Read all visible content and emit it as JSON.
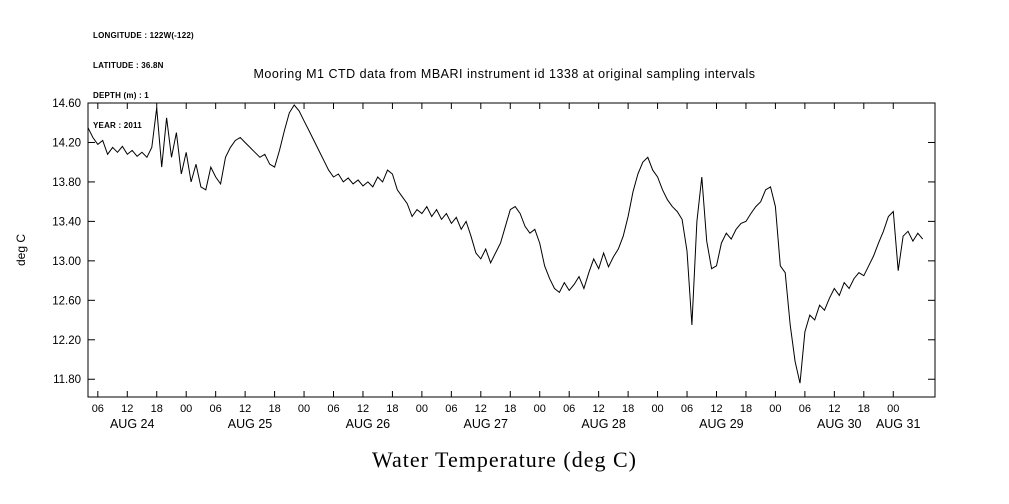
{
  "header": {
    "info_lines": [
      "LONGITUDE : 122W(-122)",
      "LATITUDE : 36.8N",
      "DEPTH (m) : 1",
      "YEAR : 2011"
    ]
  },
  "chart_data": {
    "type": "line",
    "title": "Mooring M1 CTD data from MBARI instrument id 1338 at original sampling intervals",
    "ylabel": "deg C",
    "xlabel": "Water Temperature (deg C)",
    "ylim": [
      11.62,
      14.6
    ],
    "xlim_hours": [
      4,
      176.5
    ],
    "y_ticks": [
      14.6,
      14.2,
      13.8,
      13.4,
      13.0,
      12.6,
      12.2,
      11.8
    ],
    "x_ticks": {
      "start_hour": 6,
      "end_hour": 168,
      "step_hours": 6
    },
    "x_tick_labels_cycle": [
      "06",
      "12",
      "18",
      "00"
    ],
    "day_labels": [
      {
        "label": "AUG 24",
        "hour": 13
      },
      {
        "label": "AUG 25",
        "hour": 37
      },
      {
        "label": "AUG 26",
        "hour": 61
      },
      {
        "label": "AUG 27",
        "hour": 85
      },
      {
        "label": "AUG 28",
        "hour": 109
      },
      {
        "label": "AUG 29",
        "hour": 133
      },
      {
        "label": "AUG 30",
        "hour": 157
      },
      {
        "label": "AUG 31",
        "hour": 169
      }
    ],
    "grid": false,
    "legend": "none",
    "line_color": "#000000",
    "background_color": "#ffffff",
    "series": [
      {
        "name": "water_temperature_degC",
        "start_hour": 4,
        "step_hours": 1,
        "values": [
          14.35,
          14.25,
          14.18,
          14.22,
          14.08,
          14.15,
          14.1,
          14.16,
          14.08,
          14.12,
          14.06,
          14.1,
          14.05,
          14.15,
          14.55,
          13.95,
          14.45,
          14.05,
          14.3,
          13.88,
          14.1,
          13.8,
          13.98,
          13.75,
          13.72,
          13.95,
          13.85,
          13.78,
          14.05,
          14.15,
          14.22,
          14.25,
          14.2,
          14.15,
          14.1,
          14.05,
          14.08,
          13.98,
          13.95,
          14.12,
          14.32,
          14.5,
          14.58,
          14.52,
          14.42,
          14.32,
          14.22,
          14.12,
          14.02,
          13.92,
          13.85,
          13.88,
          13.8,
          13.84,
          13.78,
          13.82,
          13.76,
          13.8,
          13.75,
          13.85,
          13.8,
          13.92,
          13.88,
          13.72,
          13.65,
          13.58,
          13.45,
          13.52,
          13.48,
          13.55,
          13.45,
          13.52,
          13.42,
          13.48,
          13.38,
          13.44,
          13.32,
          13.4,
          13.25,
          13.08,
          13.02,
          13.12,
          12.98,
          13.08,
          13.18,
          13.35,
          13.52,
          13.55,
          13.48,
          13.35,
          13.28,
          13.32,
          13.18,
          12.95,
          12.82,
          12.72,
          12.68,
          12.78,
          12.7,
          12.76,
          12.84,
          12.72,
          12.88,
          13.02,
          12.92,
          13.08,
          12.94,
          13.04,
          13.12,
          13.25,
          13.45,
          13.7,
          13.88,
          14.0,
          14.05,
          13.92,
          13.85,
          13.72,
          13.62,
          13.55,
          13.5,
          13.42,
          13.1,
          12.35,
          13.4,
          13.85,
          13.2,
          12.92,
          12.95,
          13.18,
          13.28,
          13.22,
          13.32,
          13.38,
          13.4,
          13.48,
          13.55,
          13.6,
          13.72,
          13.75,
          13.55,
          12.95,
          12.88,
          12.35,
          11.98,
          11.76,
          12.28,
          12.45,
          12.4,
          12.55,
          12.5,
          12.62,
          12.72,
          12.65,
          12.78,
          12.72,
          12.82,
          12.88,
          12.85,
          12.95,
          13.05,
          13.18,
          13.3,
          13.45,
          13.5,
          12.9,
          13.25,
          13.3,
          13.2,
          13.28,
          13.22
        ]
      }
    ]
  }
}
